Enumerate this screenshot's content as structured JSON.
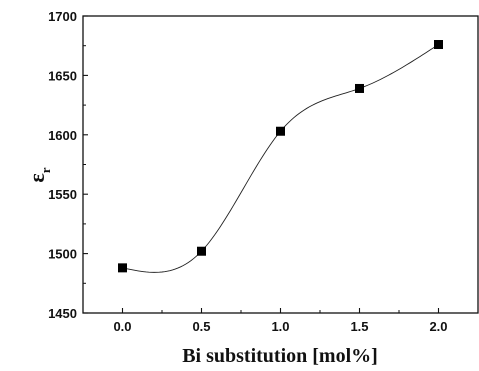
{
  "chart_data": {
    "type": "scatter",
    "title": "",
    "xlabel": "Bi substitution [mol%]",
    "ylabel_symbol": "ε",
    "ylabel_subscript": "r",
    "xlim": [
      -0.25,
      2.25
    ],
    "ylim": [
      1450,
      1700
    ],
    "x_ticks": [
      0.0,
      0.5,
      1.0,
      1.5,
      2.0
    ],
    "x_tick_labels": [
      "0.0",
      "0.5",
      "1.0",
      "1.5",
      "2.0"
    ],
    "y_ticks": [
      1450,
      1500,
      1550,
      1600,
      1650,
      1700
    ],
    "y_tick_labels": [
      "1450",
      "1500",
      "1550",
      "1600",
      "1650",
      "1700"
    ],
    "grid": false,
    "marker": "square",
    "line": "smooth",
    "series": [
      {
        "x": [
          0.0,
          0.5,
          1.0,
          1.5,
          2.0
        ],
        "y": [
          1488,
          1502,
          1603,
          1639,
          1676
        ]
      }
    ]
  }
}
